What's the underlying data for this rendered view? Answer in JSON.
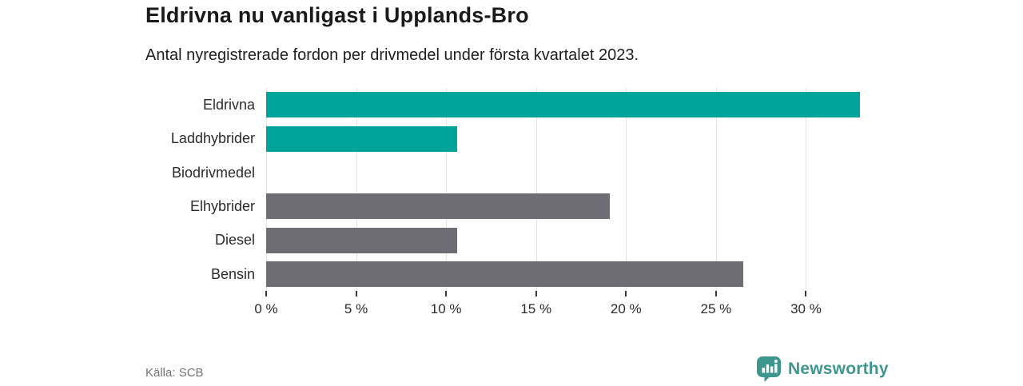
{
  "header": {
    "title": "Eldrivna nu vanligast i Upplands-Bro",
    "subtitle": "Antal nyregistrerade fordon per drivmedel under första kvartalet 2023."
  },
  "chart_data": {
    "type": "bar",
    "orientation": "horizontal",
    "title": "Eldrivna nu vanligast i Upplands-Bro",
    "subtitle": "Antal nyregistrerade fordon per drivmedel under första kvartalet 2023.",
    "categories": [
      "Eldrivna",
      "Laddhybrider",
      "Biodrivmedel",
      "Elhybrider",
      "Diesel",
      "Bensin"
    ],
    "values": [
      33.0,
      10.6,
      0,
      19.1,
      10.6,
      26.5
    ],
    "unit": "%",
    "xlabel": "",
    "ylabel": "",
    "xlim": [
      0,
      33
    ],
    "x_ticks": [
      0,
      5,
      10,
      15,
      20,
      25,
      30
    ],
    "x_tick_labels": [
      "0 %",
      "5 %",
      "10 %",
      "15 %",
      "20 %",
      "25 %",
      "30 %"
    ],
    "bar_colors": [
      "#00a49a",
      "#00a49a",
      "#00a49a",
      "#6e6d74",
      "#6e6d74",
      "#6e6d74"
    ],
    "grid": "vertical",
    "legend": "none"
  },
  "footer": {
    "source": "Källa: SCB",
    "brand": "Newsworthy"
  },
  "colors": {
    "accent_teal": "#00a49a",
    "bar_gray": "#6e6d74",
    "grid": "#e3e3e3",
    "axis": "#3a3a3a",
    "text_dark": "#1a1a1a",
    "text_muted": "#737373",
    "logo_teal": "#3e978f"
  }
}
